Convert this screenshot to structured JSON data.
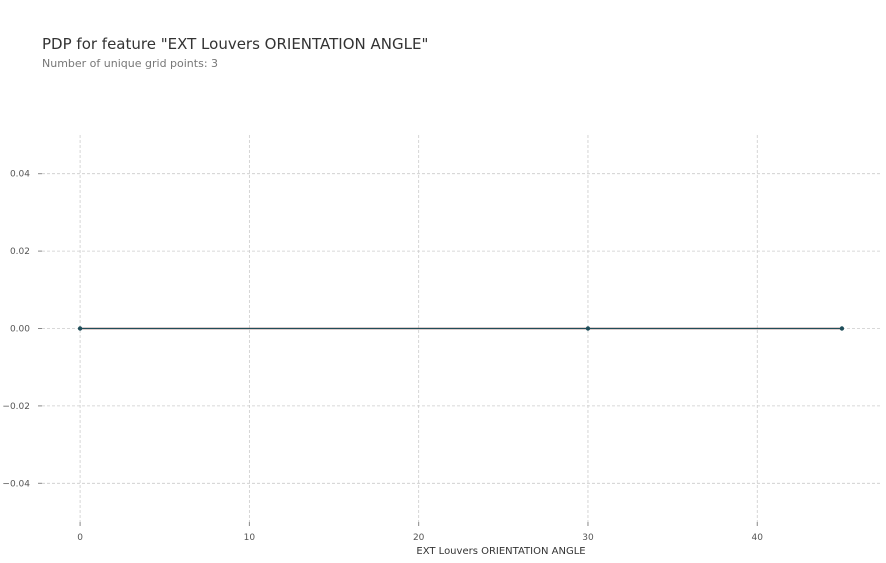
{
  "header": {
    "title": "PDP for feature \"EXT Louvers ORIENTATION ANGLE\"",
    "subtitle": "Number of unique grid points: 3"
  },
  "chart_data": {
    "type": "line",
    "title": "PDP for feature \"EXT Louvers ORIENTATION ANGLE\"",
    "subtitle": "Number of unique grid points: 3",
    "xlabel": "EXT Louvers ORIENTATION ANGLE",
    "ylabel": "",
    "x": [
      0,
      30,
      45
    ],
    "series": [
      {
        "values": [
          0.0,
          0.0,
          0.0
        ],
        "color": "#1f4e5a",
        "style": "solid-with-markers"
      }
    ],
    "baseline": {
      "value": 0.0,
      "color": "#d46c5b"
    },
    "xlim": [
      -2.25,
      47.25
    ],
    "ylim": [
      -0.05,
      0.05
    ],
    "xticks": [
      0,
      10,
      20,
      30,
      40
    ],
    "xtick_labels": [
      "0",
      "10",
      "20",
      "30",
      "40"
    ],
    "yticks": [
      0.04,
      0.02,
      0.0,
      -0.02,
      -0.04
    ],
    "ytick_labels": [
      "0.04",
      "0.02",
      "0.00",
      "−0.02",
      "−0.04"
    ],
    "grid": true,
    "legend": false,
    "colors": {
      "line": "#1f4e5a",
      "baseline": "#d46c5b",
      "grid": "#cccccc",
      "tick_label": "#555555"
    }
  }
}
